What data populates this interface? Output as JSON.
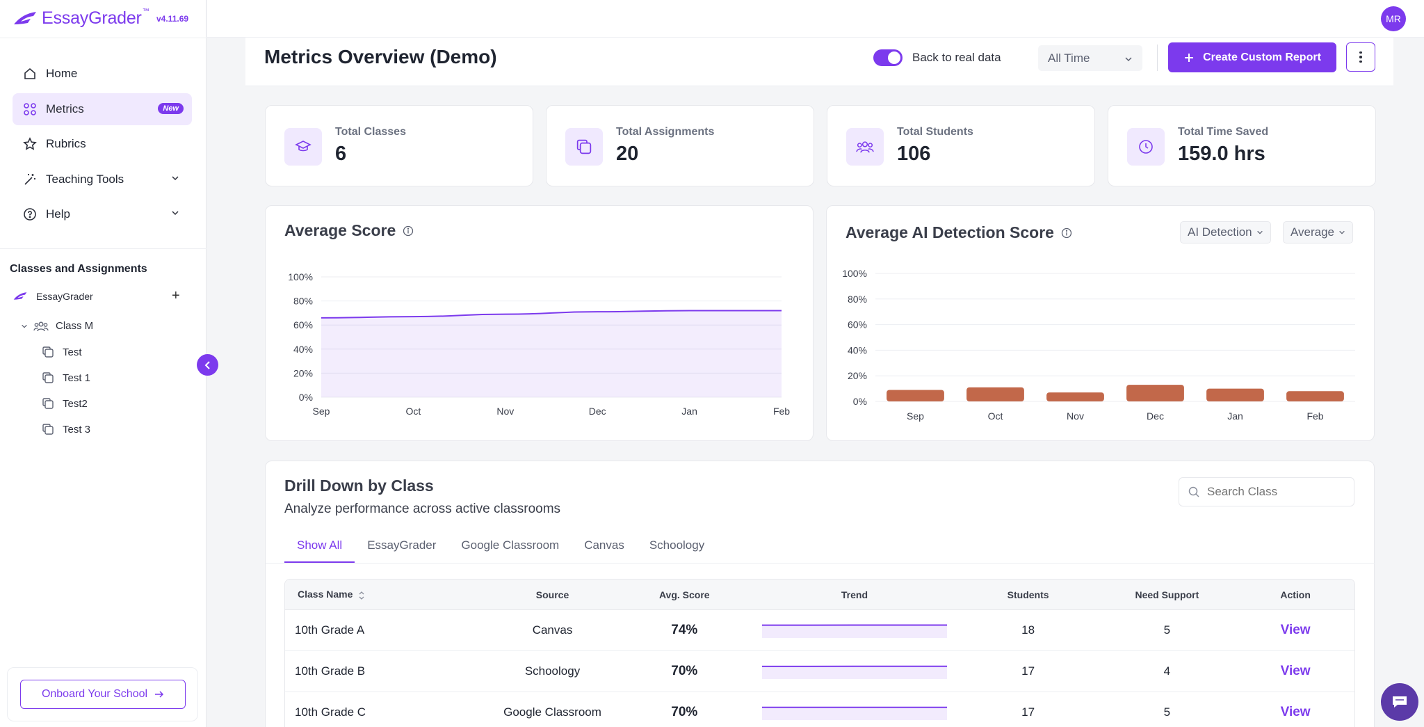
{
  "app": {
    "brand": "EssayGrader",
    "brand_tm": "™",
    "version": "v4.11.69",
    "user_initials": "MR",
    "accent": "#7c3aed"
  },
  "sidebar": {
    "nav": [
      {
        "label": "Home",
        "icon": "home-icon"
      },
      {
        "label": "Metrics",
        "icon": "grid-icon",
        "badge": "New",
        "active": true
      },
      {
        "label": "Rubrics",
        "icon": "star-icon"
      },
      {
        "label": "Teaching Tools",
        "icon": "magic-wand-icon",
        "expandable": true
      },
      {
        "label": "Help",
        "icon": "help-icon",
        "expandable": true
      }
    ],
    "section_title": "Classes and Assignments",
    "org": "EssayGrader",
    "class_name": "Class M",
    "assignments": [
      "Test",
      "Test 1",
      "Test2",
      "Test 3"
    ],
    "onboard_label": "Onboard Your School"
  },
  "header": {
    "title": "Metrics Overview (Demo)",
    "toggle_label": "Back to real data",
    "toggle_on": true,
    "time_range": "All Time",
    "create_label": "Create Custom Report"
  },
  "stats": [
    {
      "label": "Total Classes",
      "value": "6",
      "icon": "graduation-cap-icon"
    },
    {
      "label": "Total Assignments",
      "value": "20",
      "icon": "copy-icon"
    },
    {
      "label": "Total Students",
      "value": "106",
      "icon": "users-icon"
    },
    {
      "label": "Total Time Saved",
      "value": "159.0 hrs",
      "icon": "clock-icon"
    }
  ],
  "avg_score": {
    "title": "Average Score",
    "chart_data": {
      "type": "area",
      "categories": [
        "Sep",
        "Oct",
        "Nov",
        "Dec",
        "Jan",
        "Feb"
      ],
      "values": [
        66,
        67,
        69,
        71,
        72,
        72
      ],
      "yticks": [
        "100%",
        "80%",
        "60%",
        "40%",
        "20%",
        "0%"
      ],
      "ylim": [
        0,
        100
      ],
      "color": "#7c3aed"
    }
  },
  "ai_detection": {
    "title": "Average AI Detection Score",
    "filter1": "AI Detection",
    "filter2": "Average",
    "chart_data": {
      "type": "bar",
      "categories": [
        "Sep",
        "Oct",
        "Nov",
        "Dec",
        "Jan",
        "Feb"
      ],
      "values": [
        9,
        11,
        7,
        13,
        10,
        8
      ],
      "yticks": [
        "100%",
        "80%",
        "60%",
        "40%",
        "20%",
        "0%"
      ],
      "ylim": [
        0,
        100
      ],
      "color": "#c2684a"
    }
  },
  "drilldown": {
    "title": "Drill Down by Class",
    "subtitle": "Analyze performance across active classrooms",
    "search_placeholder": "Search Class",
    "tabs": [
      "Show All",
      "EssayGrader",
      "Google Classroom",
      "Canvas",
      "Schoology"
    ],
    "columns": [
      "Class Name",
      "Source",
      "Avg. Score",
      "Trend",
      "Students",
      "Need Support",
      "Action"
    ],
    "rows": [
      {
        "name": "10th Grade A",
        "source": "Canvas",
        "avg": "74%",
        "students": "18",
        "support": "5",
        "action": "View",
        "trend": [
          73,
          73,
          74,
          74,
          74
        ]
      },
      {
        "name": "10th Grade B",
        "source": "Schoology",
        "avg": "70%",
        "students": "17",
        "support": "4",
        "action": "View",
        "trend": [
          69,
          69,
          70,
          70,
          70
        ]
      },
      {
        "name": "10th Grade C",
        "source": "Google Classroom",
        "avg": "70%",
        "students": "17",
        "support": "5",
        "action": "View",
        "trend": [
          70,
          70,
          70,
          70,
          70
        ]
      }
    ]
  }
}
